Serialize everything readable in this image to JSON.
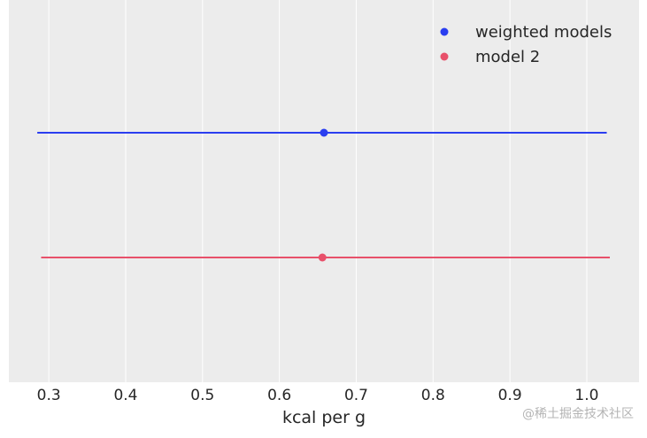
{
  "chart_data": {
    "type": "scatter",
    "title": "",
    "xlabel": "kcal per g",
    "ylabel": "",
    "xlim": [
      0.248,
      1.068
    ],
    "xticks": [
      0.3,
      0.4,
      0.5,
      0.6,
      0.7,
      0.8,
      0.9,
      1.0
    ],
    "xtick_labels": [
      "0.3",
      "0.4",
      "0.5",
      "0.6",
      "0.7",
      "0.8",
      "0.9",
      "1.0"
    ],
    "grid": true,
    "legend_position": "top-right",
    "series": [
      {
        "name": "weighted models",
        "color": "#2a3ef0",
        "point": 0.658,
        "interval": [
          0.285,
          1.026
        ]
      },
      {
        "name": "model 2",
        "color": "#e8506a",
        "point": 0.656,
        "interval": [
          0.29,
          1.03
        ]
      }
    ]
  },
  "watermark": "@稀土掘金技术社区"
}
